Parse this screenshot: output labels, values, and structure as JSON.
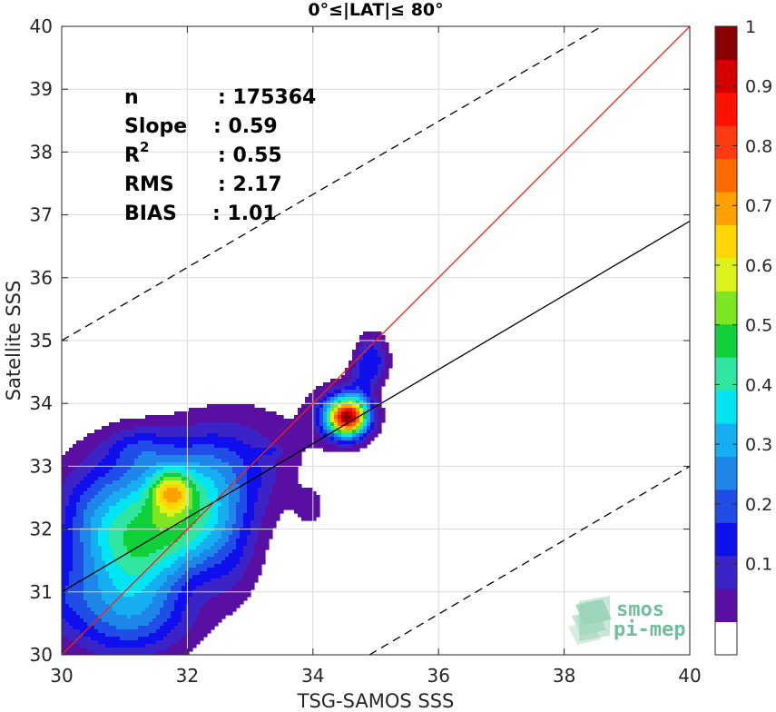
{
  "chart_data": {
    "type": "heatmap",
    "title": "0°≤|LAT|≤ 80°",
    "xlabel": "TSG-SAMOS SSS",
    "ylabel": "Satellite SSS",
    "xlim": [
      30,
      40
    ],
    "ylim": [
      30,
      40
    ],
    "xticks": [
      "30",
      "32",
      "34",
      "36",
      "38",
      "40"
    ],
    "yticks": [
      "30",
      "31",
      "32",
      "33",
      "34",
      "35",
      "36",
      "37",
      "38",
      "39",
      "40"
    ],
    "grid": true,
    "stats": [
      {
        "label": "n",
        "value": ": 175364"
      },
      {
        "label": "Slope",
        "value": ": 0.59"
      },
      {
        "label": "R",
        "sup": "2",
        "value": ": 0.55"
      },
      {
        "label": "RMS",
        "value": ": 2.17"
      },
      {
        "label": "BIAS",
        "value": ": 1.01"
      }
    ],
    "lines": {
      "identity": {
        "color": "#e8251c",
        "points": [
          [
            30,
            30
          ],
          [
            40,
            40
          ]
        ]
      },
      "regression": {
        "color": "#000000",
        "slope": 0.59,
        "points": [
          [
            30,
            31.0
          ],
          [
            40,
            36.9
          ]
        ]
      },
      "bounds": [
        {
          "style": "dashed",
          "points": [
            [
              30,
              35
            ],
            [
              38.6,
              40
            ]
          ]
        },
        {
          "style": "dashed",
          "points": [
            [
              34.9,
              30
            ],
            [
              40,
              33
            ]
          ]
        }
      ]
    },
    "colorbar": {
      "ticks": [
        "0.1",
        "0.2",
        "0.3",
        "0.4",
        "0.5",
        "0.6",
        "0.7",
        "0.8",
        "0.9",
        "1"
      ],
      "colors": [
        "#ffffff",
        "#5a0fa3",
        "#3a24c7",
        "#1010ee",
        "#1f4de6",
        "#1e86e8",
        "#16aef0",
        "#00e5f2",
        "#2fe6a0",
        "#10d03a",
        "#7de620",
        "#ddf21a",
        "#ffd700",
        "#ff9f00",
        "#ff6a00",
        "#ff3a10",
        "#ff1000",
        "#d40000",
        "#8b0000"
      ]
    },
    "density": [
      {
        "x": 31.8,
        "y": 32.5,
        "sx": 1.0,
        "sy": 0.75,
        "rho": 0.45,
        "a": 0.4
      },
      {
        "x": 31.9,
        "y": 31.8,
        "sx": 0.6,
        "sy": 0.55,
        "rho": 0.3,
        "a": 0.22
      },
      {
        "x": 31.0,
        "y": 31.4,
        "sx": 0.5,
        "sy": 0.6,
        "rho": 0.0,
        "a": 0.18
      },
      {
        "x": 31.75,
        "y": 32.6,
        "sx": 0.22,
        "sy": 0.22,
        "rho": 0.0,
        "a": 0.3
      },
      {
        "x": 31.2,
        "y": 33.3,
        "sx": 0.35,
        "sy": 0.25,
        "rho": 0.0,
        "a": 0.12
      },
      {
        "x": 30.5,
        "y": 32.4,
        "sx": 0.5,
        "sy": 0.7,
        "rho": 0.0,
        "a": 0.12
      },
      {
        "x": 30.8,
        "y": 30.5,
        "sx": 0.6,
        "sy": 0.5,
        "rho": 0.0,
        "a": 0.14
      },
      {
        "x": 31.5,
        "y": 30.6,
        "sx": 0.6,
        "sy": 0.45,
        "rho": 0.0,
        "a": 0.13
      },
      {
        "x": 30.0,
        "y": 30.9,
        "sx": 0.4,
        "sy": 0.4,
        "rho": 0.0,
        "a": 0.11
      },
      {
        "x": 32.7,
        "y": 31.5,
        "sx": 0.35,
        "sy": 0.55,
        "rho": 0.0,
        "a": 0.1
      },
      {
        "x": 34.55,
        "y": 33.78,
        "sx": 0.22,
        "sy": 0.2,
        "rho": 0.0,
        "a": 0.85
      },
      {
        "x": 34.45,
        "y": 33.85,
        "sx": 0.33,
        "sy": 0.32,
        "rho": 0.0,
        "a": 0.18
      },
      {
        "x": 34.95,
        "y": 34.7,
        "sx": 0.18,
        "sy": 0.28,
        "rho": 0.0,
        "a": 0.2
      },
      {
        "x": 34.75,
        "y": 34.2,
        "sx": 0.15,
        "sy": 0.35,
        "rho": 0.0,
        "a": 0.1
      },
      {
        "x": 33.3,
        "y": 33.25,
        "sx": 0.13,
        "sy": 0.06,
        "rho": 0.0,
        "a": 0.08
      },
      {
        "x": 33.95,
        "y": 32.35,
        "sx": 0.17,
        "sy": 0.2,
        "rho": 0.0,
        "a": 0.08
      }
    ]
  },
  "logo": {
    "line1": "smos",
    "line2": "pi-mep"
  }
}
